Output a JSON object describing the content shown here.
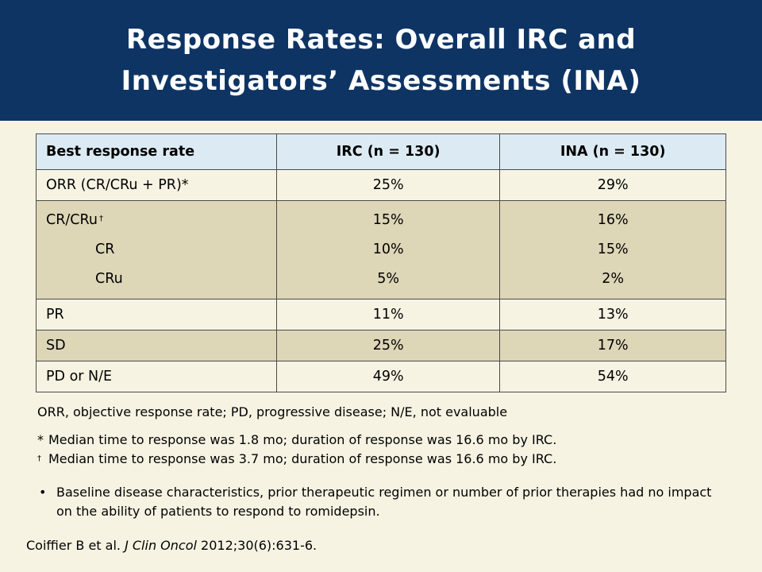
{
  "title": {
    "line1": "Response Rates: Overall IRC and",
    "line2": "Investigators’ Assessments (INA)"
  },
  "table": {
    "headers": [
      "Best response rate",
      "IRC (n = 130)",
      "INA (n = 130)"
    ],
    "orr": {
      "label": "ORR (CR/CRu + PR)*",
      "irc": "25%",
      "ina": "29%"
    },
    "crcru": {
      "label": "CR/CRu",
      "dagger": "†",
      "irc": "15%",
      "ina": "16%",
      "cr": {
        "label": "CR",
        "irc": "10%",
        "ina": "15%"
      },
      "cru": {
        "label": "CRu",
        "irc": "5%",
        "ina": "2%"
      }
    },
    "pr": {
      "label": "PR",
      "irc": "11%",
      "ina": "13%"
    },
    "sd": {
      "label": "SD",
      "irc": "25%",
      "ina": "17%"
    },
    "pd": {
      "label": "PD or N/E",
      "irc": "49%",
      "ina": "54%"
    }
  },
  "abbreviations": "ORR, objective response rate; PD, progressive disease; N/E, not evaluable",
  "footnotes": [
    {
      "mark": "*",
      "text": "Median time to response was 1.8 mo; duration of response was 16.6 mo by IRC."
    },
    {
      "mark": "†",
      "text": "Median time to response was 3.7 mo; duration of response was 16.6 mo by IRC."
    }
  ],
  "bullet": {
    "marker": "•",
    "text": "Baseline disease characteristics, prior therapeutic regimen or number of prior therapies had no impact on the ability of patients to respond to romidepsin."
  },
  "citation": {
    "authors": "Coiffier B et al.",
    "journal": "J Clin Oncol",
    "ref": "2012;30(6):631-6."
  },
  "colors": {
    "title_bar": "#0e3464",
    "background": "#f7f3e3",
    "header_row": "#dcebf3",
    "shaded_row": "#ddd6b7"
  }
}
